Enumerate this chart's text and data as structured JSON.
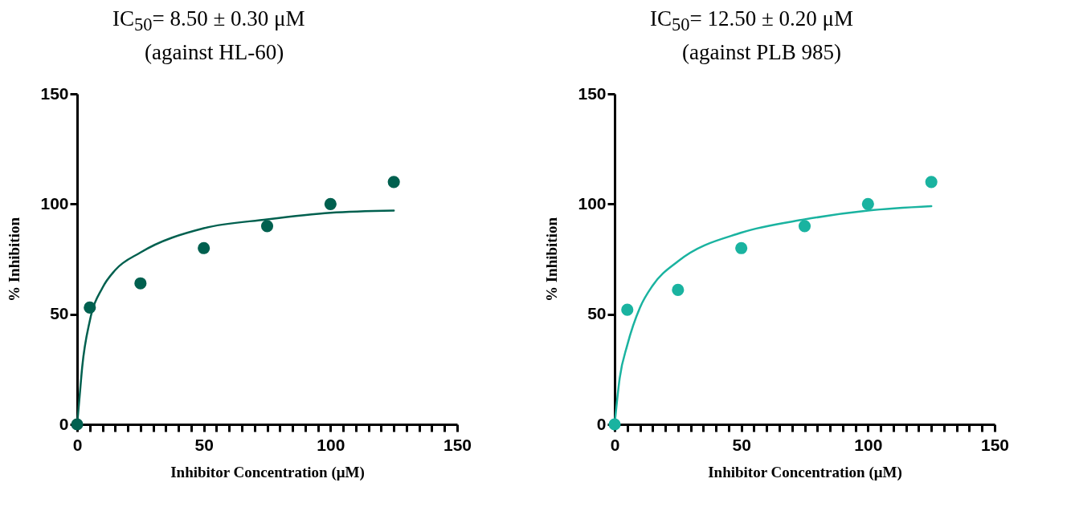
{
  "chart_data": [
    {
      "type": "scatter",
      "title": "IC$_{50}$= 8.50 ± 0.30 μM",
      "subtitle": "(against HL-60)",
      "xlabel": "Inhibitor Concentration (μM)",
      "ylabel": "% Inhibition",
      "xlim": [
        0,
        150
      ],
      "ylim": [
        0,
        150
      ],
      "xticks": [
        0,
        {
          "value": 5,
          "label": null
        },
        {
          "value": 10,
          "label": null
        },
        {
          "value": 15,
          "label": null
        },
        {
          "value": 20,
          "label": null
        },
        {
          "value": 25,
          "label": null
        },
        {
          "value": 30,
          "label": null
        },
        {
          "value": 35,
          "label": null
        },
        {
          "value": 40,
          "label": null
        },
        {
          "value": 45,
          "label": null
        },
        50,
        {
          "value": 55,
          "label": null
        },
        {
          "value": 60,
          "label": null
        },
        {
          "value": 65,
          "label": null
        },
        {
          "value": 70,
          "label": null
        },
        {
          "value": 75,
          "label": null
        },
        {
          "value": 80,
          "label": null
        },
        {
          "value": 85,
          "label": null
        },
        {
          "value": 90,
          "label": null
        },
        {
          "value": 95,
          "label": null
        },
        100,
        {
          "value": 105,
          "label": null
        },
        {
          "value": 110,
          "label": null
        },
        {
          "value": 115,
          "label": null
        },
        {
          "value": 120,
          "label": null
        },
        {
          "value": 125,
          "label": null
        },
        {
          "value": 130,
          "label": null
        },
        {
          "value": 135,
          "label": null
        },
        {
          "value": 140,
          "label": null
        },
        {
          "value": 145,
          "label": null
        },
        150
      ],
      "yticks": [
        0,
        50,
        100,
        150
      ],
      "grid": false,
      "series": [
        {
          "marker": "circle",
          "color": "#00604f",
          "x": [
            0,
            5,
            25,
            50,
            75,
            100,
            125
          ],
          "values": [
            0,
            53,
            64,
            80,
            90,
            100,
            110
          ]
        },
        {
          "type": "line",
          "color": "#00604f",
          "x": [
            0,
            1,
            2,
            5,
            10,
            15,
            25,
            50,
            75,
            100,
            125
          ],
          "values": [
            0,
            13,
            26,
            47,
            62,
            70,
            78,
            89,
            93,
            96,
            97
          ]
        }
      ]
    },
    {
      "type": "scatter",
      "title": "IC$_{50}$= 12.50 ± 0.20 μM",
      "subtitle": "(against PLB 985)",
      "xlabel": "Inhibitor Concentration (μM)",
      "ylabel": "% Inhibition",
      "xlim": [
        0,
        150
      ],
      "ylim": [
        0,
        150
      ],
      "xticks": [
        0,
        {
          "value": 5,
          "label": null
        },
        {
          "value": 10,
          "label": null
        },
        {
          "value": 15,
          "label": null
        },
        {
          "value": 20,
          "label": null
        },
        {
          "value": 25,
          "label": null
        },
        {
          "value": 30,
          "label": null
        },
        {
          "value": 35,
          "label": null
        },
        {
          "value": 40,
          "label": null
        },
        {
          "value": 45,
          "label": null
        },
        50,
        {
          "value": 55,
          "label": null
        },
        {
          "value": 60,
          "label": null
        },
        {
          "value": 65,
          "label": null
        },
        {
          "value": 70,
          "label": null
        },
        {
          "value": 75,
          "label": null
        },
        {
          "value": 80,
          "label": null
        },
        {
          "value": 85,
          "label": null
        },
        {
          "value": 90,
          "label": null
        },
        {
          "value": 95,
          "label": null
        },
        100,
        {
          "value": 105,
          "label": null
        },
        {
          "value": 110,
          "label": null
        },
        {
          "value": 115,
          "label": null
        },
        {
          "value": 120,
          "label": null
        },
        {
          "value": 125,
          "label": null
        },
        {
          "value": 130,
          "label": null
        },
        {
          "value": 135,
          "label": null
        },
        {
          "value": 140,
          "label": null
        },
        {
          "value": 145,
          "label": null
        },
        150
      ],
      "yticks": [
        0,
        50,
        100,
        150
      ],
      "grid": false,
      "series": [
        {
          "marker": "circle",
          "color": "#1ab3a0",
          "x": [
            0,
            5,
            25,
            50,
            75,
            100,
            125
          ],
          "values": [
            0,
            52,
            61,
            80,
            90,
            100,
            110
          ]
        },
        {
          "type": "line",
          "color": "#1ab3a0",
          "x": [
            0,
            2,
            5,
            10,
            15,
            25,
            50,
            75,
            100,
            125
          ],
          "values": [
            0,
            21,
            36,
            53,
            63,
            74,
            87,
            93,
            97,
            99
          ]
        }
      ]
    }
  ]
}
